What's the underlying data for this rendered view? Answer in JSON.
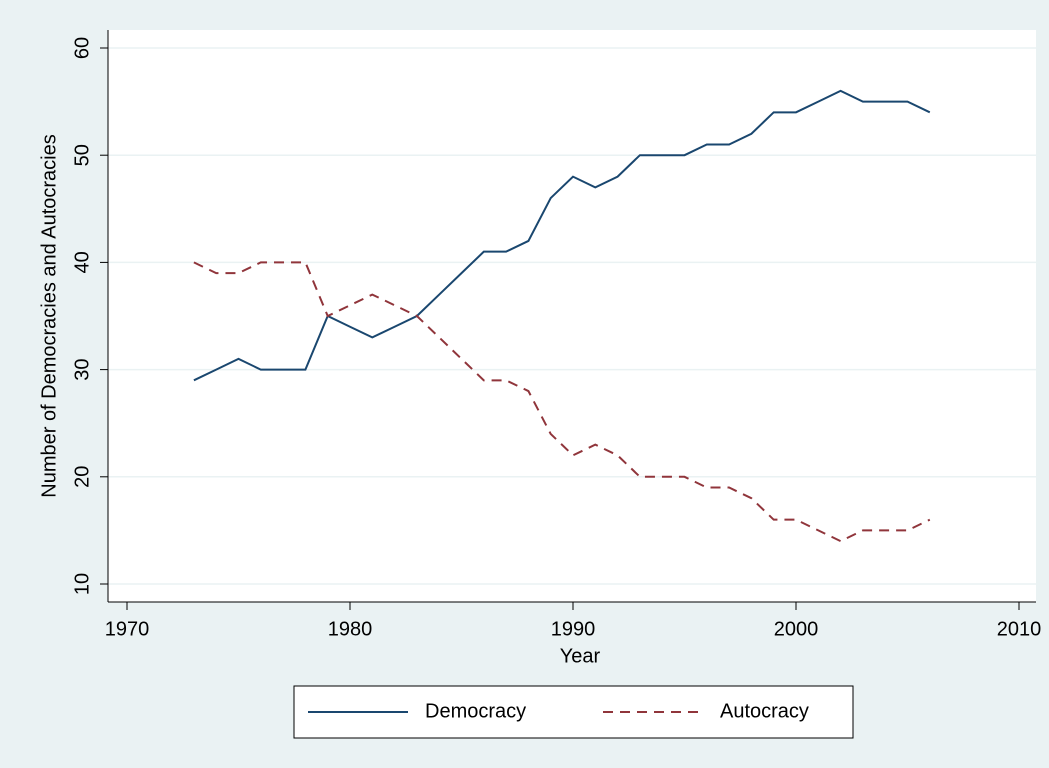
{
  "chart_data": {
    "type": "line",
    "x_label": "Year",
    "y_label": "Number of Democracies and Autocracies",
    "x": [
      1973,
      1974,
      1975,
      1976,
      1977,
      1978,
      1979,
      1980,
      1981,
      1982,
      1983,
      1984,
      1985,
      1986,
      1987,
      1988,
      1989,
      1990,
      1991,
      1992,
      1993,
      1994,
      1995,
      1996,
      1997,
      1998,
      1999,
      2000,
      2001,
      2002,
      2003,
      2004,
      2005,
      2006
    ],
    "series": [
      {
        "name": "Democracy",
        "color": "#1a476f",
        "line_style": "solid",
        "values": [
          29,
          30,
          31,
          30,
          30,
          30,
          35,
          34,
          33,
          34,
          35,
          37,
          39,
          41,
          41,
          42,
          46,
          48,
          47,
          48,
          50,
          50,
          50,
          51,
          51,
          52,
          54,
          54,
          55,
          56,
          55,
          55,
          55,
          54
        ]
      },
      {
        "name": "Autocracy",
        "color": "#90353b",
        "line_style": "dashed",
        "values": [
          40,
          39,
          39,
          40,
          40,
          40,
          35,
          36,
          37,
          36,
          35,
          33,
          31,
          29,
          29,
          28,
          24,
          22,
          23,
          22,
          20,
          20,
          20,
          19,
          19,
          18,
          16,
          16,
          15,
          14,
          15,
          15,
          15,
          16
        ]
      }
    ],
    "xlim": [
      1970,
      2010
    ],
    "xticks": [
      1970,
      1980,
      1990,
      2000,
      2010
    ],
    "ylim": [
      10,
      60
    ],
    "yticks": [
      10,
      20,
      30,
      40,
      50,
      60
    ],
    "grid": true,
    "legend": "bottom"
  }
}
